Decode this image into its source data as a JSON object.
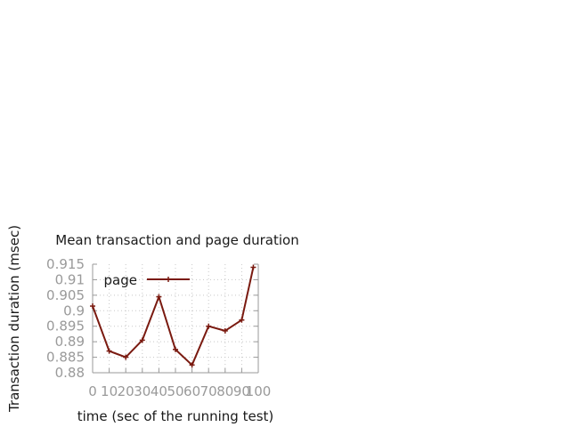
{
  "chart_data": {
    "type": "line",
    "title": "Mean transaction and page duration",
    "xlabel": "time (sec of the running test)",
    "ylabel": "Transaction duration (msec)",
    "xlim": [
      0,
      100
    ],
    "ylim": [
      0.88,
      0.915
    ],
    "x_ticks": [
      "0",
      "10",
      "20",
      "30",
      "40",
      "50",
      "60",
      "70",
      "80",
      "90",
      "100"
    ],
    "y_ticks": [
      "0.88",
      "0.885",
      "0.89",
      "0.895",
      "0.9",
      "0.905",
      "0.91",
      "0.915"
    ],
    "grid": true,
    "legend_position": "top-left",
    "series": [
      {
        "name": "page",
        "color": "#7a1a10",
        "marker": "plus",
        "x": [
          0,
          10,
          20,
          30,
          40,
          50,
          60,
          70,
          80,
          90,
          97
        ],
        "y": [
          0.9015,
          0.887,
          0.885,
          0.8905,
          0.9045,
          0.8875,
          0.8825,
          0.895,
          0.8935,
          0.897,
          0.914
        ]
      }
    ]
  }
}
